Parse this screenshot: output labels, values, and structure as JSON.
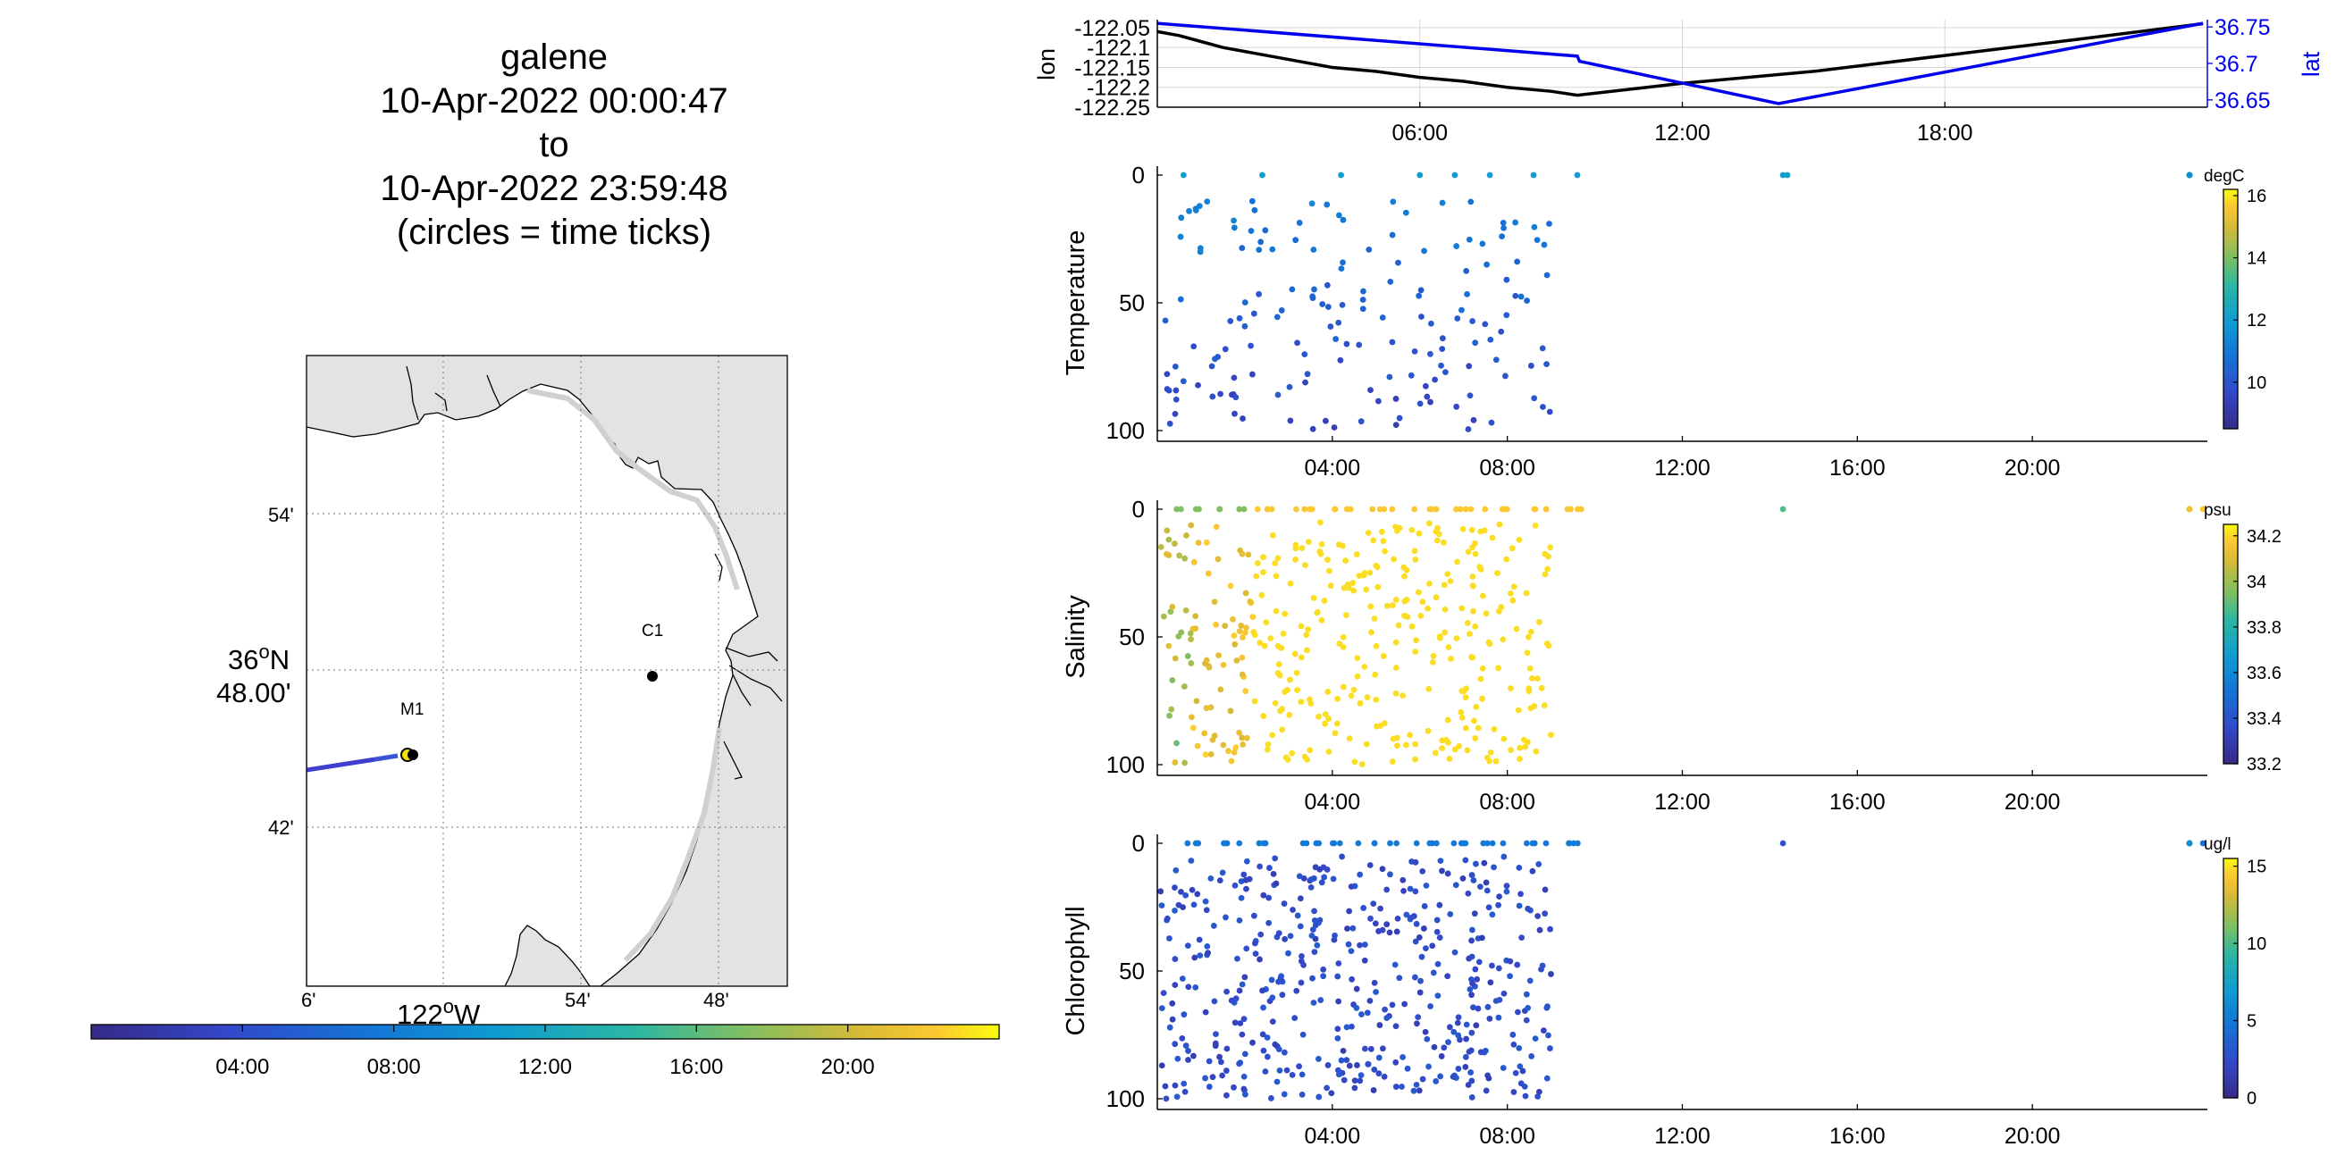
{
  "title": {
    "line1": "galene",
    "line2": "10-Apr-2022 00:00:47",
    "line3": "to",
    "line4": "10-Apr-2022 23:59:48",
    "line5": "(circles = time ticks)"
  },
  "map": {
    "lat_ticks": [
      "54'",
      "36°N 48.00'",
      "42'"
    ],
    "lat_main_deg": "36",
    "lat_main_n": "N",
    "lat_main_min": "48.00'",
    "lon_ticks": [
      "6'",
      "54'",
      "48'"
    ],
    "lon_main_deg": "122",
    "lon_main_w": "W",
    "stations": [
      {
        "name": "C1"
      },
      {
        "name": "M1"
      }
    ],
    "colorbar_ticks": [
      "04:00",
      "08:00",
      "12:00",
      "16:00",
      "20:00"
    ]
  },
  "chart_data": [
    {
      "type": "line",
      "ylabel": "lon",
      "y2label": "lat",
      "x_ticks": [
        "06:00",
        "12:00",
        "18:00"
      ],
      "y_ticks": [
        "-122.05",
        "-122.1",
        "-122.15",
        "-122.2",
        "-122.25"
      ],
      "y2_ticks": [
        "36.75",
        "36.7",
        "36.65"
      ],
      "ylim": [
        -122.25,
        -122.03
      ],
      "y2lim": [
        36.64,
        36.76
      ],
      "xlim_hours": [
        0,
        24
      ],
      "series": [
        {
          "name": "lon",
          "color": "#000000",
          "x": [
            0,
            0.5,
            1,
            1.5,
            2,
            3,
            4,
            5,
            6,
            7,
            8,
            9,
            9.6,
            12,
            15,
            18,
            21,
            23.9
          ],
          "y": [
            -122.06,
            -122.07,
            -122.085,
            -122.1,
            -122.11,
            -122.13,
            -122.15,
            -122.16,
            -122.175,
            -122.185,
            -122.2,
            -122.21,
            -122.22,
            -122.19,
            -122.16,
            -122.12,
            -122.08,
            -122.04
          ]
        },
        {
          "name": "lat",
          "color": "#0000ee",
          "x": [
            0,
            9.6,
            9.65,
            14.2,
            23.9
          ],
          "y": [
            36.755,
            36.71,
            36.703,
            36.645,
            36.755
          ]
        }
      ]
    },
    {
      "type": "scatter",
      "ylabel": "Temperature",
      "units": "degC",
      "x_ticks": [
        "04:00",
        "08:00",
        "12:00",
        "16:00",
        "20:00"
      ],
      "y_ticks": [
        "0",
        "50",
        "100"
      ],
      "colorbar_ticks": [
        "16",
        "14",
        "12",
        "10"
      ],
      "colorbar_range": [
        8.5,
        16.2
      ],
      "xlim_hours": [
        0,
        24
      ],
      "ylim": [
        0,
        100
      ],
      "surface_points_hours": [
        0.6,
        2.4,
        4.2,
        6,
        6.8,
        7.6,
        8.6,
        9.6,
        14.3,
        14.4
      ]
    },
    {
      "type": "scatter",
      "ylabel": "Salinity",
      "units": "psu",
      "x_ticks": [
        "04:00",
        "08:00",
        "12:00",
        "16:00",
        "20:00"
      ],
      "y_ticks": [
        "0",
        "50",
        "100"
      ],
      "colorbar_ticks": [
        "34.2",
        "34",
        "33.8",
        "33.6",
        "33.4",
        "33.2"
      ],
      "colorbar_range": [
        33.2,
        34.25
      ],
      "xlim_hours": [
        0,
        24
      ],
      "ylim": [
        0,
        100
      ]
    },
    {
      "type": "scatter",
      "ylabel": "Chlorophyll",
      "units": "ug/l",
      "x_ticks": [
        "04:00",
        "08:00",
        "12:00",
        "16:00",
        "20:00"
      ],
      "y_ticks": [
        "0",
        "50",
        "100"
      ],
      "colorbar_ticks": [
        "15",
        "10",
        "5",
        "0"
      ],
      "colorbar_range": [
        0,
        15.5
      ],
      "xlim_hours": [
        0,
        24
      ],
      "ylim": [
        0,
        100
      ]
    }
  ]
}
